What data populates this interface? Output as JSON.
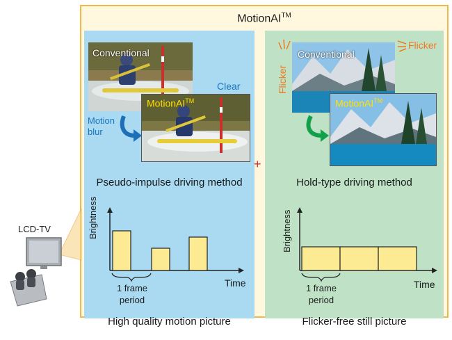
{
  "title": {
    "text": "MotionAI",
    "tm": "TM"
  },
  "left": {
    "photo_top_label": "Conventional",
    "photo_bottom_label": "MotionAI",
    "photo_bottom_tm": "TM",
    "clear_label": "Clear",
    "motion_blur_label_1": "Motion",
    "motion_blur_label_2": "blur",
    "method_label": "Pseudo-impulse driving method",
    "bottom_caption": "High quality motion picture",
    "chart": {
      "ylabel": "Brightness",
      "xlabel": "Time",
      "frame_label_1": "1 frame",
      "frame_label_2": "period"
    }
  },
  "right": {
    "photo_top_label": "Conventional",
    "photo_bottom_label": "MotionAI",
    "photo_bottom_tm": "TM",
    "flicker_label_top": "Flicker",
    "flicker_label_side": "Flicker",
    "method_label": "Hold-type driving method",
    "bottom_caption": "Flicker-free still picture",
    "chart": {
      "ylabel": "Brightness",
      "xlabel": "Time",
      "frame_label_1": "1 frame",
      "frame_label_2": "period"
    }
  },
  "plus_sign": "+",
  "side": {
    "tv_label": "LCD-TV"
  },
  "colors": {
    "panel_left": "#a9daf1",
    "panel_right": "#bfe2c6",
    "bar": "#fdeb93",
    "frame": "#f0b84a",
    "accent_orange": "#f07a1e",
    "accent_blue": "#1774c2"
  }
}
